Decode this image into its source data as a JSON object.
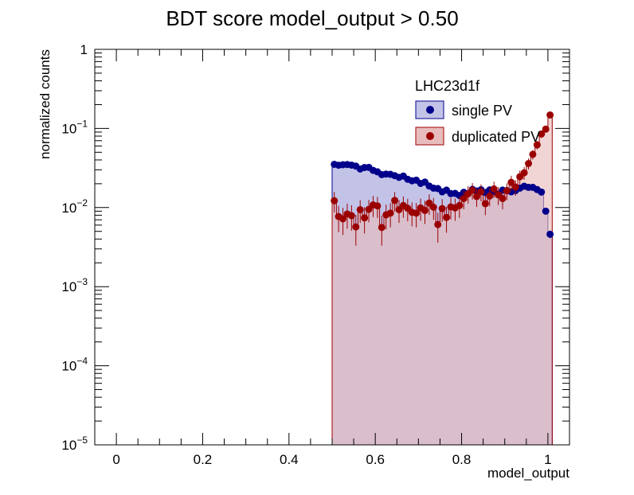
{
  "chart_data": {
    "type": "histogram",
    "title": "BDT score  model_output > 0.50",
    "xlabel": "model_output",
    "ylabel": "normalized counts",
    "xlim": [
      -0.05,
      1.05
    ],
    "ylim": [
      1e-05,
      1
    ],
    "y_scale": "log",
    "x_ticks": [
      "0",
      "0.2",
      "0.4",
      "0.6",
      "0.8",
      "1"
    ],
    "x_tick_values": [
      0,
      0.2,
      0.4,
      0.6,
      0.8,
      1
    ],
    "y_ticks": [
      {
        "value": 1e-05,
        "base": "10",
        "exp": "−5"
      },
      {
        "value": 0.0001,
        "base": "10",
        "exp": "−4"
      },
      {
        "value": 0.001,
        "base": "10",
        "exp": "−3"
      },
      {
        "value": 0.01,
        "base": "10",
        "exp": "−2"
      },
      {
        "value": 0.1,
        "base": "10",
        "exp": "−1"
      },
      {
        "value": 1,
        "base": "1",
        "exp": ""
      }
    ],
    "legend": {
      "title": "LHC23d1f",
      "placement": "top-right"
    },
    "bin_edges_start": 0.5,
    "bin_width": 0.01,
    "series": [
      {
        "name": "single PV",
        "line_color": "#00008b",
        "fill_color": "#c3c3e8",
        "values": [
          0.0352,
          0.0343,
          0.0348,
          0.035,
          0.0344,
          0.0334,
          0.0307,
          0.0321,
          0.0322,
          0.0295,
          0.0283,
          0.0261,
          0.0265,
          0.0263,
          0.0253,
          0.0241,
          0.025,
          0.0228,
          0.0218,
          0.0222,
          0.0202,
          0.021,
          0.0187,
          0.0176,
          0.0174,
          0.0158,
          0.0166,
          0.015,
          0.0151,
          0.0142,
          0.0156,
          0.015,
          0.017,
          0.0162,
          0.0168,
          0.0155,
          0.0167,
          0.0158,
          0.0148,
          0.0166,
          0.0164,
          0.0158,
          0.0164,
          0.0176,
          0.0186,
          0.018,
          0.018,
          0.0169,
          0.0157,
          0.009,
          0.0046
        ],
        "errors": [
          0.0015,
          0.0015,
          0.0015,
          0.0015,
          0.0015,
          0.0015,
          0.0014,
          0.0014,
          0.0014,
          0.0013,
          0.0013,
          0.0012,
          0.0012,
          0.0012,
          0.0012,
          0.0011,
          0.0011,
          0.0011,
          0.001,
          0.001,
          0.001,
          0.001,
          0.0009,
          0.0009,
          0.0009,
          0.0008,
          0.0008,
          0.0008,
          0.0008,
          0.0008,
          0.0008,
          0.0008,
          0.0009,
          0.0009,
          0.0009,
          0.0008,
          0.0009,
          0.0008,
          0.0008,
          0.0009,
          0.0009,
          0.0008,
          0.0009,
          0.0009,
          0.0009,
          0.0009,
          0.0009,
          0.0009,
          0.0008,
          0.0006,
          0.0005
        ]
      },
      {
        "name": "duplicated PV",
        "line_color": "#9b0000",
        "fill_color": "#e8bcbc",
        "values": [
          0.0122,
          0.0077,
          0.0072,
          0.0083,
          0.0079,
          0.0057,
          0.0094,
          0.0074,
          0.0095,
          0.0108,
          0.0105,
          0.0056,
          0.0081,
          0.0085,
          0.0123,
          0.0094,
          0.0106,
          0.0098,
          0.0087,
          0.0085,
          0.0099,
          0.0092,
          0.0114,
          0.0101,
          0.0061,
          0.0097,
          0.0075,
          0.0102,
          0.0099,
          0.0106,
          0.013,
          0.0149,
          0.0165,
          0.0138,
          0.0158,
          0.0112,
          0.014,
          0.0172,
          0.0145,
          0.013,
          0.0163,
          0.0208,
          0.0182,
          0.0245,
          0.0275,
          0.036,
          0.047,
          0.062,
          0.085,
          0.098,
          0.148
        ],
        "errors": [
          0.0035,
          0.0028,
          0.0027,
          0.0029,
          0.0028,
          0.0024,
          0.003,
          0.0027,
          0.003,
          0.0032,
          0.0031,
          0.0023,
          0.0028,
          0.0029,
          0.0034,
          0.003,
          0.0032,
          0.0031,
          0.0029,
          0.0029,
          0.0031,
          0.003,
          0.0033,
          0.0031,
          0.0025,
          0.0031,
          0.0027,
          0.0031,
          0.0031,
          0.0032,
          0.0035,
          0.0037,
          0.0039,
          0.0036,
          0.0038,
          0.0032,
          0.0036,
          0.004,
          0.0037,
          0.0035,
          0.0039,
          0.0044,
          0.0041,
          0.0048,
          0.0051,
          0.0058,
          0.0066,
          0.0076,
          0.009,
          0.0095,
          0.012
        ]
      }
    ]
  }
}
